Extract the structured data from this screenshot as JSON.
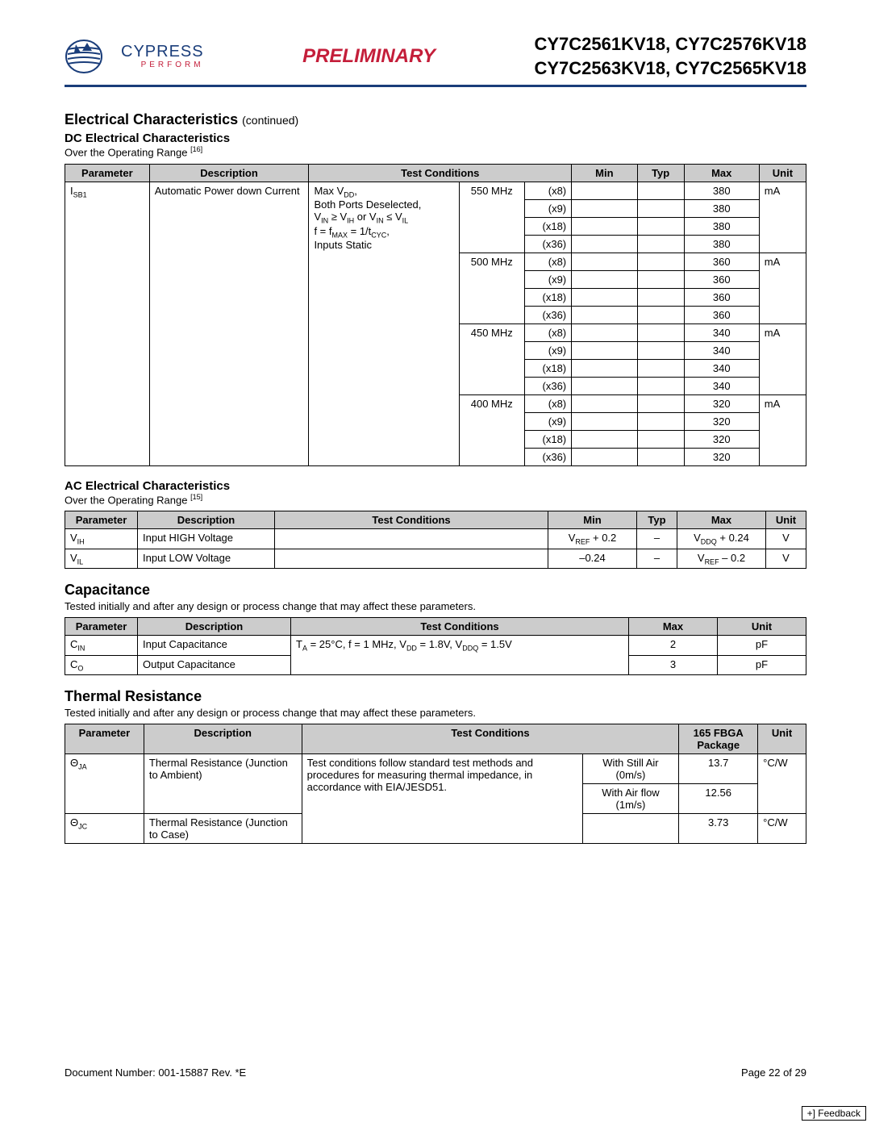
{
  "header": {
    "brand": "CYPRESS",
    "tagline": "PERFORM",
    "preliminary": "PRELIMINARY",
    "parts_line1": "CY7C2561KV18, CY7C2576KV18",
    "parts_line2": "CY7C2563KV18, CY7C2565KV18"
  },
  "section1": {
    "title": "Electrical Characteristics",
    "continued": "(continued)",
    "subtitle": "DC Electrical Characteristics",
    "note_prefix": "Over the Operating Range ",
    "note_ref": "[16]"
  },
  "dc_table": {
    "headers": [
      "Parameter",
      "Description",
      "Test Conditions",
      "Min",
      "Typ",
      "Max",
      "Unit"
    ],
    "param_html": "I<sub>SB1</sub>",
    "description": "Automatic Power down Current",
    "conditions_html": "Max V<sub>DD</sub>,<br>Both Ports Deselected,<br>V<sub>IN</sub> ≥ V<sub>IH</sub> or V<sub>IN</sub> ≤ V<sub>IL</sub><br>f = f<sub>MAX</sub> = 1/t<sub>CYC</sub>,<br>Inputs Static",
    "freq_groups": [
      {
        "freq": "550 MHz",
        "unit": "mA",
        "rows": [
          {
            "mult": "(x8)",
            "max": "380"
          },
          {
            "mult": "(x9)",
            "max": "380"
          },
          {
            "mult": "(x18)",
            "max": "380"
          },
          {
            "mult": "(x36)",
            "max": "380"
          }
        ]
      },
      {
        "freq": "500 MHz",
        "unit": "mA",
        "rows": [
          {
            "mult": "(x8)",
            "max": "360"
          },
          {
            "mult": "(x9)",
            "max": "360"
          },
          {
            "mult": "(x18)",
            "max": "360"
          },
          {
            "mult": "(x36)",
            "max": "360"
          }
        ]
      },
      {
        "freq": "450 MHz",
        "unit": "mA",
        "rows": [
          {
            "mult": "(x8)",
            "max": "340"
          },
          {
            "mult": "(x9)",
            "max": "340"
          },
          {
            "mult": "(x18)",
            "max": "340"
          },
          {
            "mult": "(x36)",
            "max": "340"
          }
        ]
      },
      {
        "freq": "400 MHz",
        "unit": "mA",
        "rows": [
          {
            "mult": "(x8)",
            "max": "320"
          },
          {
            "mult": "(x9)",
            "max": "320"
          },
          {
            "mult": "(x18)",
            "max": "320"
          },
          {
            "mult": "(x36)",
            "max": "320"
          }
        ]
      }
    ]
  },
  "section2": {
    "subtitle": "AC Electrical Characteristics",
    "note_prefix": "Over the Operating Range ",
    "note_ref": "[15]"
  },
  "ac_table": {
    "headers": [
      "Parameter",
      "Description",
      "Test Conditions",
      "Min",
      "Typ",
      "Max",
      "Unit"
    ],
    "rows": [
      {
        "param_html": "V<sub>IH</sub>",
        "desc": "Input HIGH Voltage",
        "cond": "",
        "min_html": "V<sub>REF</sub> + 0.2",
        "typ": "–",
        "max_html": "V<sub>DDQ</sub> + 0.24",
        "unit": "V"
      },
      {
        "param_html": "V<sub>IL</sub>",
        "desc": "Input LOW Voltage",
        "cond": "",
        "min_html": "–0.24",
        "typ": "–",
        "max_html": "V<sub>REF</sub> – 0.2",
        "unit": "V"
      }
    ]
  },
  "section3": {
    "title": "Capacitance",
    "note": "Tested initially and after any design or process change that may affect these parameters."
  },
  "cap_table": {
    "headers": [
      "Parameter",
      "Description",
      "Test Conditions",
      "Max",
      "Unit"
    ],
    "cond_html": "T<sub>A</sub> = 25°C, f = 1 MHz, V<sub>DD</sub> = 1.8V, V<sub>DDQ</sub> = 1.5V",
    "rows": [
      {
        "param_html": "C<sub>IN</sub>",
        "desc": "Input Capacitance",
        "max": "2",
        "unit": "pF"
      },
      {
        "param_html": "C<sub>O</sub>",
        "desc": "Output Capacitance",
        "max": "3",
        "unit": "pF"
      }
    ]
  },
  "section4": {
    "title": "Thermal Resistance",
    "note": "Tested initially and after any design or process change that may affect these parameters."
  },
  "thermal_table": {
    "headers": [
      "Parameter",
      "Description",
      "Test Conditions",
      "165 FBGA Package",
      "Unit"
    ],
    "cond_text": "Test conditions follow standard test methods and procedures for measuring thermal impedance, in accordance with EIA/JESD51.",
    "rows": [
      {
        "param_html": "Θ<sub>JA</sub>",
        "desc": "Thermal Resistance (Junction to Ambient)",
        "sub": [
          {
            "env": "With Still Air (0m/s)",
            "val": "13.7"
          },
          {
            "env": "With Air flow (1m/s)",
            "val": "12.56"
          }
        ],
        "unit": "°C/W"
      },
      {
        "param_html": "Θ<sub>JC</sub>",
        "desc": "Thermal Resistance (Junction to Case)",
        "env": "",
        "val": "3.73",
        "unit": "°C/W"
      }
    ]
  },
  "footer": {
    "doc": "Document Number: 001-15887 Rev. *E",
    "page": "Page 22 of 29",
    "feedback": "+] Feedback"
  },
  "colors": {
    "header_rule": "#1a3d7a",
    "accent_red": "#c41e3a",
    "th_bg": "#cccccc"
  }
}
